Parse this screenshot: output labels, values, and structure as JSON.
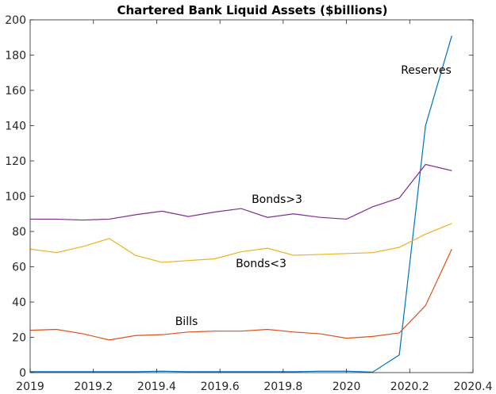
{
  "chart_data": {
    "type": "line",
    "title": "Chartered Bank Liquid Assets ($billions)",
    "xlabel": "",
    "ylabel": "",
    "xlim": [
      2019,
      2020.4
    ],
    "ylim": [
      0,
      200
    ],
    "grid": false,
    "x_ticks": [
      2019,
      2019.2,
      2019.4,
      2019.6,
      2019.8,
      2020,
      2020.2,
      2020.4
    ],
    "x_tick_labels": [
      "2019",
      "2019.2",
      "2019.4",
      "2019.6",
      "2019.8",
      "2020",
      "2020.2",
      "2020.4"
    ],
    "y_ticks": [
      0,
      20,
      40,
      60,
      80,
      100,
      120,
      140,
      160,
      180,
      200
    ],
    "y_tick_labels": [
      "0",
      "20",
      "40",
      "60",
      "80",
      "100",
      "120",
      "140",
      "160",
      "180",
      "200"
    ],
    "x": [
      2019,
      2019.083,
      2019.167,
      2019.25,
      2019.333,
      2019.417,
      2019.5,
      2019.583,
      2019.667,
      2019.75,
      2019.833,
      2019.917,
      2020,
      2020.083,
      2020.167,
      2020.25,
      2020.333
    ],
    "series": [
      {
        "name": "Reserves",
        "color": "#0072BD",
        "values": [
          0.5,
          0.5,
          0.5,
          0.5,
          0.5,
          0.8,
          0.5,
          0.5,
          0.5,
          0.5,
          0.5,
          0.8,
          0.8,
          0.3,
          10,
          140,
          191
        ]
      },
      {
        "name": "Bonds>3",
        "color": "#7E2F8E",
        "values": [
          87,
          87,
          86.5,
          87,
          89.5,
          91.5,
          88.5,
          91,
          93,
          88,
          90,
          88,
          87,
          94,
          99,
          118,
          114.5
        ]
      },
      {
        "name": "Bonds<3",
        "color": "#EDB120",
        "values": [
          70,
          68,
          71.5,
          76,
          66.5,
          62.5,
          63.5,
          64.5,
          68.5,
          70.5,
          66.5,
          67,
          67.5,
          68,
          71,
          78.5,
          84.5
        ]
      },
      {
        "name": "Bills",
        "color": "#D95319",
        "values": [
          24,
          24.5,
          22,
          18.5,
          21,
          21.5,
          23,
          23.5,
          23.5,
          24.5,
          23,
          22,
          19.5,
          20.5,
          22.5,
          38,
          70
        ]
      }
    ],
    "annotations": [
      {
        "text": "Reserves",
        "series": "Reserves"
      },
      {
        "text": "Bonds>3",
        "series": "Bonds>3"
      },
      {
        "text": "Bonds<3",
        "series": "Bonds<3"
      },
      {
        "text": "Bills",
        "series": "Bills"
      }
    ]
  }
}
